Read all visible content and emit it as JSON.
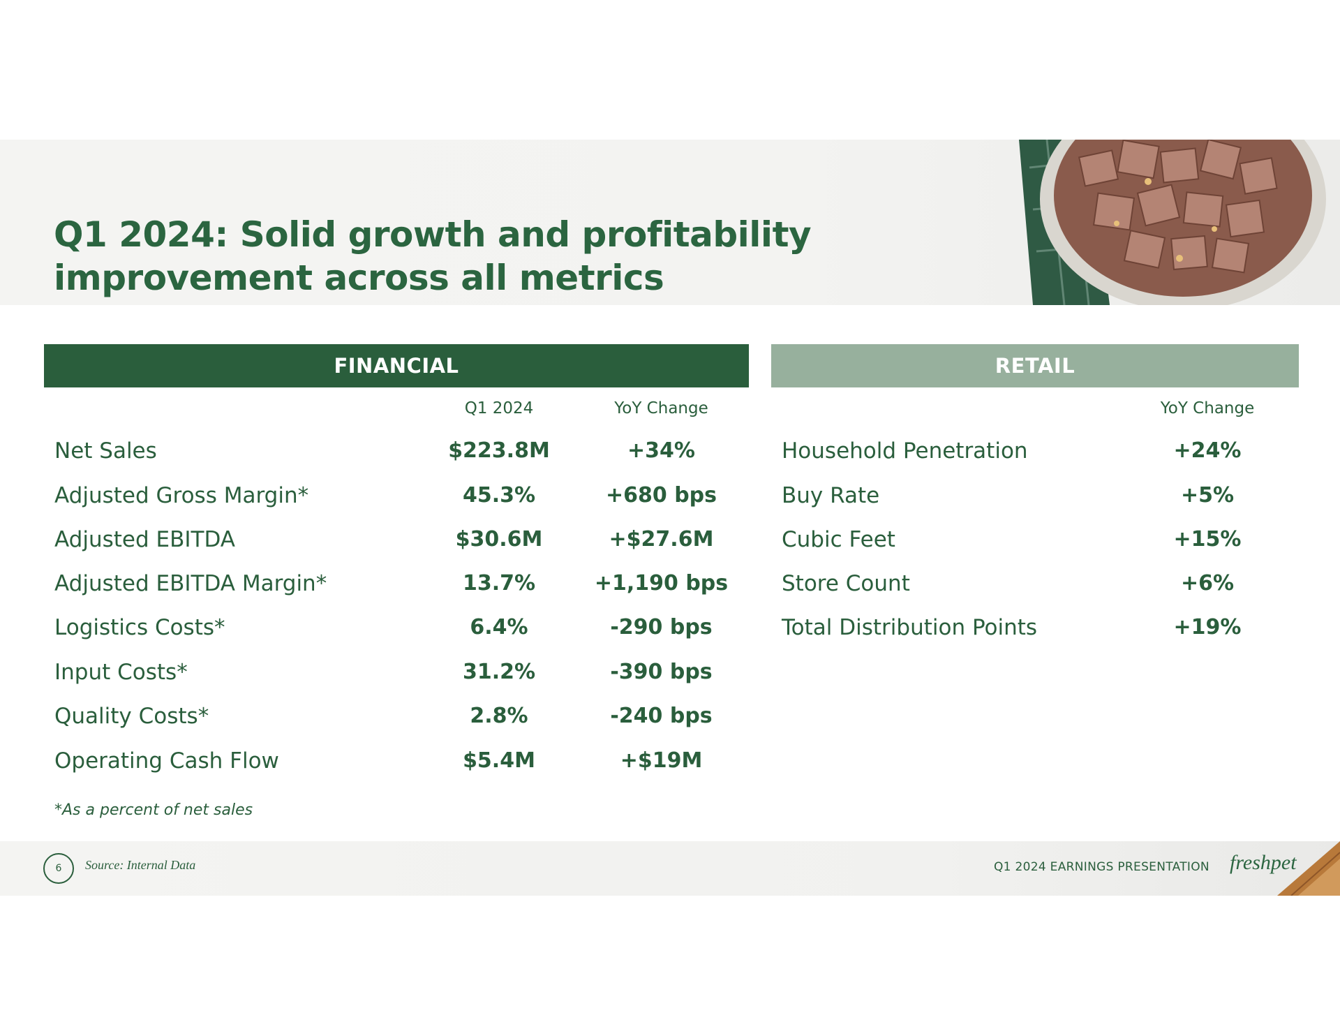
{
  "title": "Q1 2024: Solid growth and profitability improvement across all metrics",
  "financial": {
    "header": "FINANCIAL",
    "col_q1": "Q1 2024",
    "col_yoy": "YoY Change",
    "rows": [
      {
        "label": "Net Sales",
        "q1": "$223.8M",
        "yoy": "+34%"
      },
      {
        "label": "Adjusted Gross Margin*",
        "q1": "45.3%",
        "yoy": "+680 bps"
      },
      {
        "label": "Adjusted EBITDA",
        "q1": "$30.6M",
        "yoy": "+$27.6M"
      },
      {
        "label": "Adjusted EBITDA Margin*",
        "q1": "13.7%",
        "yoy": "+1,190 bps"
      },
      {
        "label": "Logistics Costs*",
        "q1": "6.4%",
        "yoy": "-290 bps"
      },
      {
        "label": "Input Costs*",
        "q1": "31.2%",
        "yoy": "-390 bps"
      },
      {
        "label": "Quality Costs*",
        "q1": "2.8%",
        "yoy": "-240 bps"
      },
      {
        "label": "Operating Cash Flow",
        "q1": "$5.4M",
        "yoy": "+$19M"
      }
    ]
  },
  "retail": {
    "header": "RETAIL",
    "col_yoy": "YoY Change",
    "rows": [
      {
        "label": "Household Penetration",
        "yoy": "+24%"
      },
      {
        "label": "Buy Rate",
        "yoy": "+5%"
      },
      {
        "label": "Cubic Feet",
        "yoy": "+15%"
      },
      {
        "label": "Store Count",
        "yoy": "+6%"
      },
      {
        "label": "Total Distribution Points",
        "yoy": "+19%"
      }
    ]
  },
  "footnote": "*As a percent of net sales",
  "footer": {
    "page_number": "6",
    "source": "Source: Internal Data",
    "presentation_title": "Q1 2024 EARNINGS PRESENTATION",
    "logo_text": "freshpet"
  },
  "colors": {
    "dark_green": "#2a5e3c",
    "sage_green": "#97b09d"
  }
}
